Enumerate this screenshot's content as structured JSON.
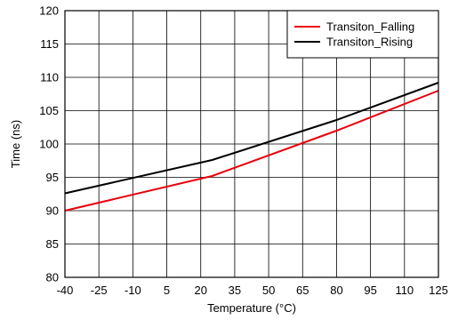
{
  "chart_data": {
    "type": "line",
    "xlabel": "Temperature (°C)",
    "ylabel": "Time (ns)",
    "xlim": [
      -40,
      125
    ],
    "ylim": [
      80,
      120
    ],
    "x_ticks": [
      "-40",
      "-25",
      "-10",
      "5",
      "20",
      "35",
      "50",
      "65",
      "80",
      "95",
      "110",
      "125"
    ],
    "y_ticks": [
      "80",
      "85",
      "90",
      "95",
      "100",
      "105",
      "110",
      "115",
      "120"
    ],
    "grid": true,
    "legend_position": "top-right",
    "series": [
      {
        "name": "Transiton_Falling",
        "color": "#e8000b",
        "x": [
          -40,
          25,
          80,
          125
        ],
        "y": [
          90.0,
          95.2,
          102.0,
          108.0
        ]
      },
      {
        "name": "Transiton_Rising",
        "color": "#000000",
        "x": [
          -40,
          25,
          80,
          125
        ],
        "y": [
          92.6,
          97.6,
          103.6,
          109.2
        ]
      }
    ]
  }
}
